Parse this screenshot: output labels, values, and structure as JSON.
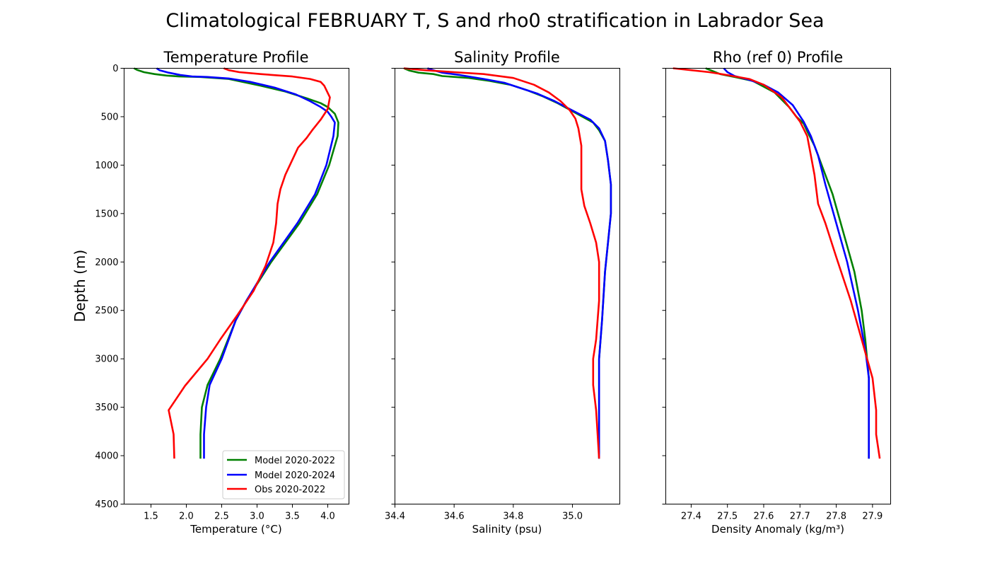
{
  "suptitle": "Climatological FEBRUARY T, S and rho0 stratification in Labrador Sea",
  "colors": {
    "green": "#008000",
    "blue": "#0000ff",
    "red": "#ff0000"
  },
  "legend": {
    "placement": "lower-right of first panel",
    "entries": [
      {
        "label": "Model 2020-2022",
        "color": "#008000"
      },
      {
        "label": "Model 2020-2024",
        "color": "#0000ff"
      },
      {
        "label": "Obs 2020-2022",
        "color": "#ff0000"
      }
    ]
  },
  "chart_data": [
    {
      "type": "line",
      "title": "Temperature Profile",
      "xlabel": "Temperature (°C)",
      "ylabel": "Depth (m)",
      "xlim": [
        1.12,
        4.3
      ],
      "ylim": [
        4500,
        0
      ],
      "y_inverted": true,
      "xticks": [
        1.5,
        2.0,
        2.5,
        3.0,
        3.5,
        4.0
      ],
      "xtick_labels": [
        "1.5",
        "2.0",
        "2.5",
        "3.0",
        "3.5",
        "4.0"
      ],
      "yticks": [
        0,
        500,
        1000,
        1500,
        2000,
        2500,
        3000,
        3500,
        4000,
        4500
      ],
      "ytick_labels": [
        "0",
        "500",
        "1000",
        "1500",
        "2000",
        "2500",
        "3000",
        "3500",
        "4000",
        "4500"
      ],
      "grid": false,
      "legend": true,
      "series": [
        {
          "name": "Model 2020-2022",
          "color": "#008000",
          "x": [
            1.26,
            1.3,
            1.4,
            1.55,
            1.72,
            1.9,
            2.2,
            2.6,
            3.05,
            3.4,
            3.7,
            3.9,
            4.0,
            4.1,
            4.15,
            4.14,
            4.02,
            3.85,
            3.6,
            3.2,
            2.85,
            2.7,
            2.48,
            2.3,
            2.22,
            2.2,
            2.2
          ],
          "y": [
            0,
            15,
            40,
            60,
            75,
            85,
            90,
            110,
            180,
            240,
            310,
            360,
            400,
            470,
            560,
            700,
            1000,
            1300,
            1600,
            2000,
            2400,
            2600,
            3000,
            3270,
            3500,
            3780,
            4030
          ]
        },
        {
          "name": "Model 2020-2024",
          "color": "#0000ff",
          "x": [
            1.58,
            1.62,
            1.75,
            1.92,
            2.08,
            2.3,
            2.6,
            2.9,
            3.25,
            3.55,
            3.75,
            3.9,
            4.0,
            4.05,
            4.1,
            4.08,
            3.98,
            3.82,
            3.57,
            3.18,
            2.85,
            2.7,
            2.5,
            2.33,
            2.28,
            2.25,
            2.25
          ],
          "y": [
            0,
            20,
            45,
            70,
            85,
            90,
            105,
            140,
            200,
            270,
            340,
            400,
            450,
            500,
            560,
            700,
            1000,
            1300,
            1600,
            2000,
            2400,
            2600,
            3000,
            3270,
            3500,
            3780,
            4030
          ]
        },
        {
          "name": "Obs 2020-2022",
          "color": "#ff0000",
          "x": [
            2.53,
            2.6,
            2.75,
            3.05,
            3.5,
            3.75,
            3.9,
            3.95,
            3.97,
            4.03,
            4.0,
            3.9,
            3.78,
            3.7,
            3.58,
            3.4,
            3.33,
            3.29,
            3.27,
            3.23,
            3.12,
            2.95,
            2.72,
            2.48,
            2.3,
            1.98,
            1.75,
            1.82,
            1.83
          ],
          "y": [
            0,
            20,
            40,
            60,
            85,
            110,
            140,
            180,
            210,
            300,
            420,
            530,
            640,
            720,
            820,
            1100,
            1250,
            1400,
            1600,
            1800,
            2040,
            2300,
            2550,
            2800,
            3000,
            3280,
            3530,
            3780,
            4030
          ]
        }
      ]
    },
    {
      "type": "line",
      "title": "Salinity Profile",
      "xlabel": "Salinity (psu)",
      "ylabel": "",
      "xlim": [
        34.4,
        35.16
      ],
      "ylim": [
        4500,
        0
      ],
      "y_inverted": true,
      "xticks": [
        34.4,
        34.6,
        34.8,
        35.0
      ],
      "xtick_labels": [
        "34.4",
        "34.6",
        "34.8",
        "35.0"
      ],
      "yticks": [
        0,
        500,
        1000,
        1500,
        2000,
        2500,
        3000,
        3500,
        4000,
        4500
      ],
      "grid": false,
      "legend": false,
      "series": [
        {
          "name": "Model 2020-2022",
          "color": "#008000",
          "x": [
            34.43,
            34.45,
            34.48,
            34.53,
            34.56,
            34.65,
            34.72,
            34.79,
            34.85,
            34.9,
            34.95,
            35.01,
            35.07,
            35.09,
            35.11,
            35.12,
            35.13,
            35.13,
            35.12,
            35.11,
            35.1,
            35.09,
            35.09,
            35.09
          ],
          "y": [
            0,
            25,
            45,
            60,
            80,
            100,
            130,
            170,
            230,
            290,
            360,
            460,
            560,
            640,
            750,
            950,
            1200,
            1500,
            1800,
            2100,
            2600,
            3000,
            3500,
            4030
          ]
        },
        {
          "name": "Model 2020-2024",
          "color": "#0000ff",
          "x": [
            34.51,
            34.53,
            34.56,
            34.62,
            34.7,
            34.77,
            34.82,
            34.88,
            34.94,
            34.99,
            35.06,
            35.09,
            35.11,
            35.12,
            35.13,
            35.13,
            35.12,
            35.11,
            35.1,
            35.09,
            35.09,
            35.09
          ],
          "y": [
            0,
            20,
            45,
            70,
            110,
            150,
            200,
            260,
            340,
            420,
            530,
            620,
            750,
            950,
            1200,
            1500,
            1800,
            2100,
            2600,
            3000,
            3500,
            4030
          ]
        },
        {
          "name": "Obs 2020-2022",
          "color": "#ff0000",
          "x": [
            34.43,
            34.5,
            34.6,
            34.7,
            34.8,
            34.87,
            34.92,
            34.96,
            34.99,
            35.01,
            35.02,
            35.03,
            35.03,
            35.03,
            35.04,
            35.06,
            35.08,
            35.09,
            35.09,
            35.08,
            35.07,
            35.07,
            35.08,
            35.09
          ],
          "y": [
            0,
            20,
            40,
            60,
            100,
            170,
            250,
            340,
            430,
            520,
            620,
            800,
            1000,
            1250,
            1420,
            1600,
            1800,
            2000,
            2400,
            2800,
            3000,
            3270,
            3530,
            4030
          ]
        }
      ]
    },
    {
      "type": "line",
      "title": "Rho (ref 0) Profile",
      "xlabel": "Density Anomaly (kg/m³)",
      "ylabel": "",
      "xlim": [
        27.33,
        27.95
      ],
      "ylim": [
        4500,
        0
      ],
      "y_inverted": true,
      "xticks": [
        27.4,
        27.5,
        27.6,
        27.7,
        27.8,
        27.9
      ],
      "xtick_labels": [
        "27.4",
        "27.5",
        "27.6",
        "27.7",
        "27.8",
        "27.9"
      ],
      "yticks": [
        0,
        500,
        1000,
        1500,
        2000,
        2500,
        3000,
        3500,
        4000,
        4500
      ],
      "grid": false,
      "legend": false,
      "series": [
        {
          "name": "Model 2020-2022",
          "color": "#008000",
          "x": [
            27.44,
            27.46,
            27.48,
            27.52,
            27.57,
            27.63,
            27.67,
            27.69,
            27.71,
            27.72,
            27.74,
            27.76,
            27.79,
            27.82,
            27.85,
            27.87,
            27.88,
            27.89,
            27.89,
            27.89
          ],
          "y": [
            0,
            30,
            60,
            90,
            130,
            250,
            400,
            500,
            570,
            650,
            800,
            1000,
            1300,
            1700,
            2100,
            2500,
            2800,
            3200,
            3600,
            4030
          ]
        },
        {
          "name": "Model 2020-2024",
          "color": "#0000ff",
          "x": [
            27.49,
            27.5,
            27.52,
            27.56,
            27.6,
            27.64,
            27.68,
            27.71,
            27.73,
            27.75,
            27.77,
            27.8,
            27.83,
            27.86,
            27.88,
            27.89,
            27.89,
            27.89
          ],
          "y": [
            0,
            40,
            80,
            120,
            170,
            250,
            380,
            550,
            700,
            900,
            1200,
            1600,
            2000,
            2500,
            2900,
            3200,
            3600,
            4030
          ]
        },
        {
          "name": "Obs 2020-2022",
          "color": "#ff0000",
          "x": [
            27.35,
            27.4,
            27.45,
            27.5,
            27.56,
            27.6,
            27.65,
            27.68,
            27.7,
            27.72,
            27.73,
            27.74,
            27.75,
            27.77,
            27.8,
            27.84,
            27.87,
            27.9,
            27.91,
            27.91,
            27.92
          ],
          "y": [
            0,
            20,
            40,
            70,
            110,
            170,
            300,
            450,
            550,
            700,
            900,
            1100,
            1400,
            1600,
            1950,
            2400,
            2800,
            3200,
            3530,
            3780,
            4030
          ]
        }
      ]
    }
  ]
}
